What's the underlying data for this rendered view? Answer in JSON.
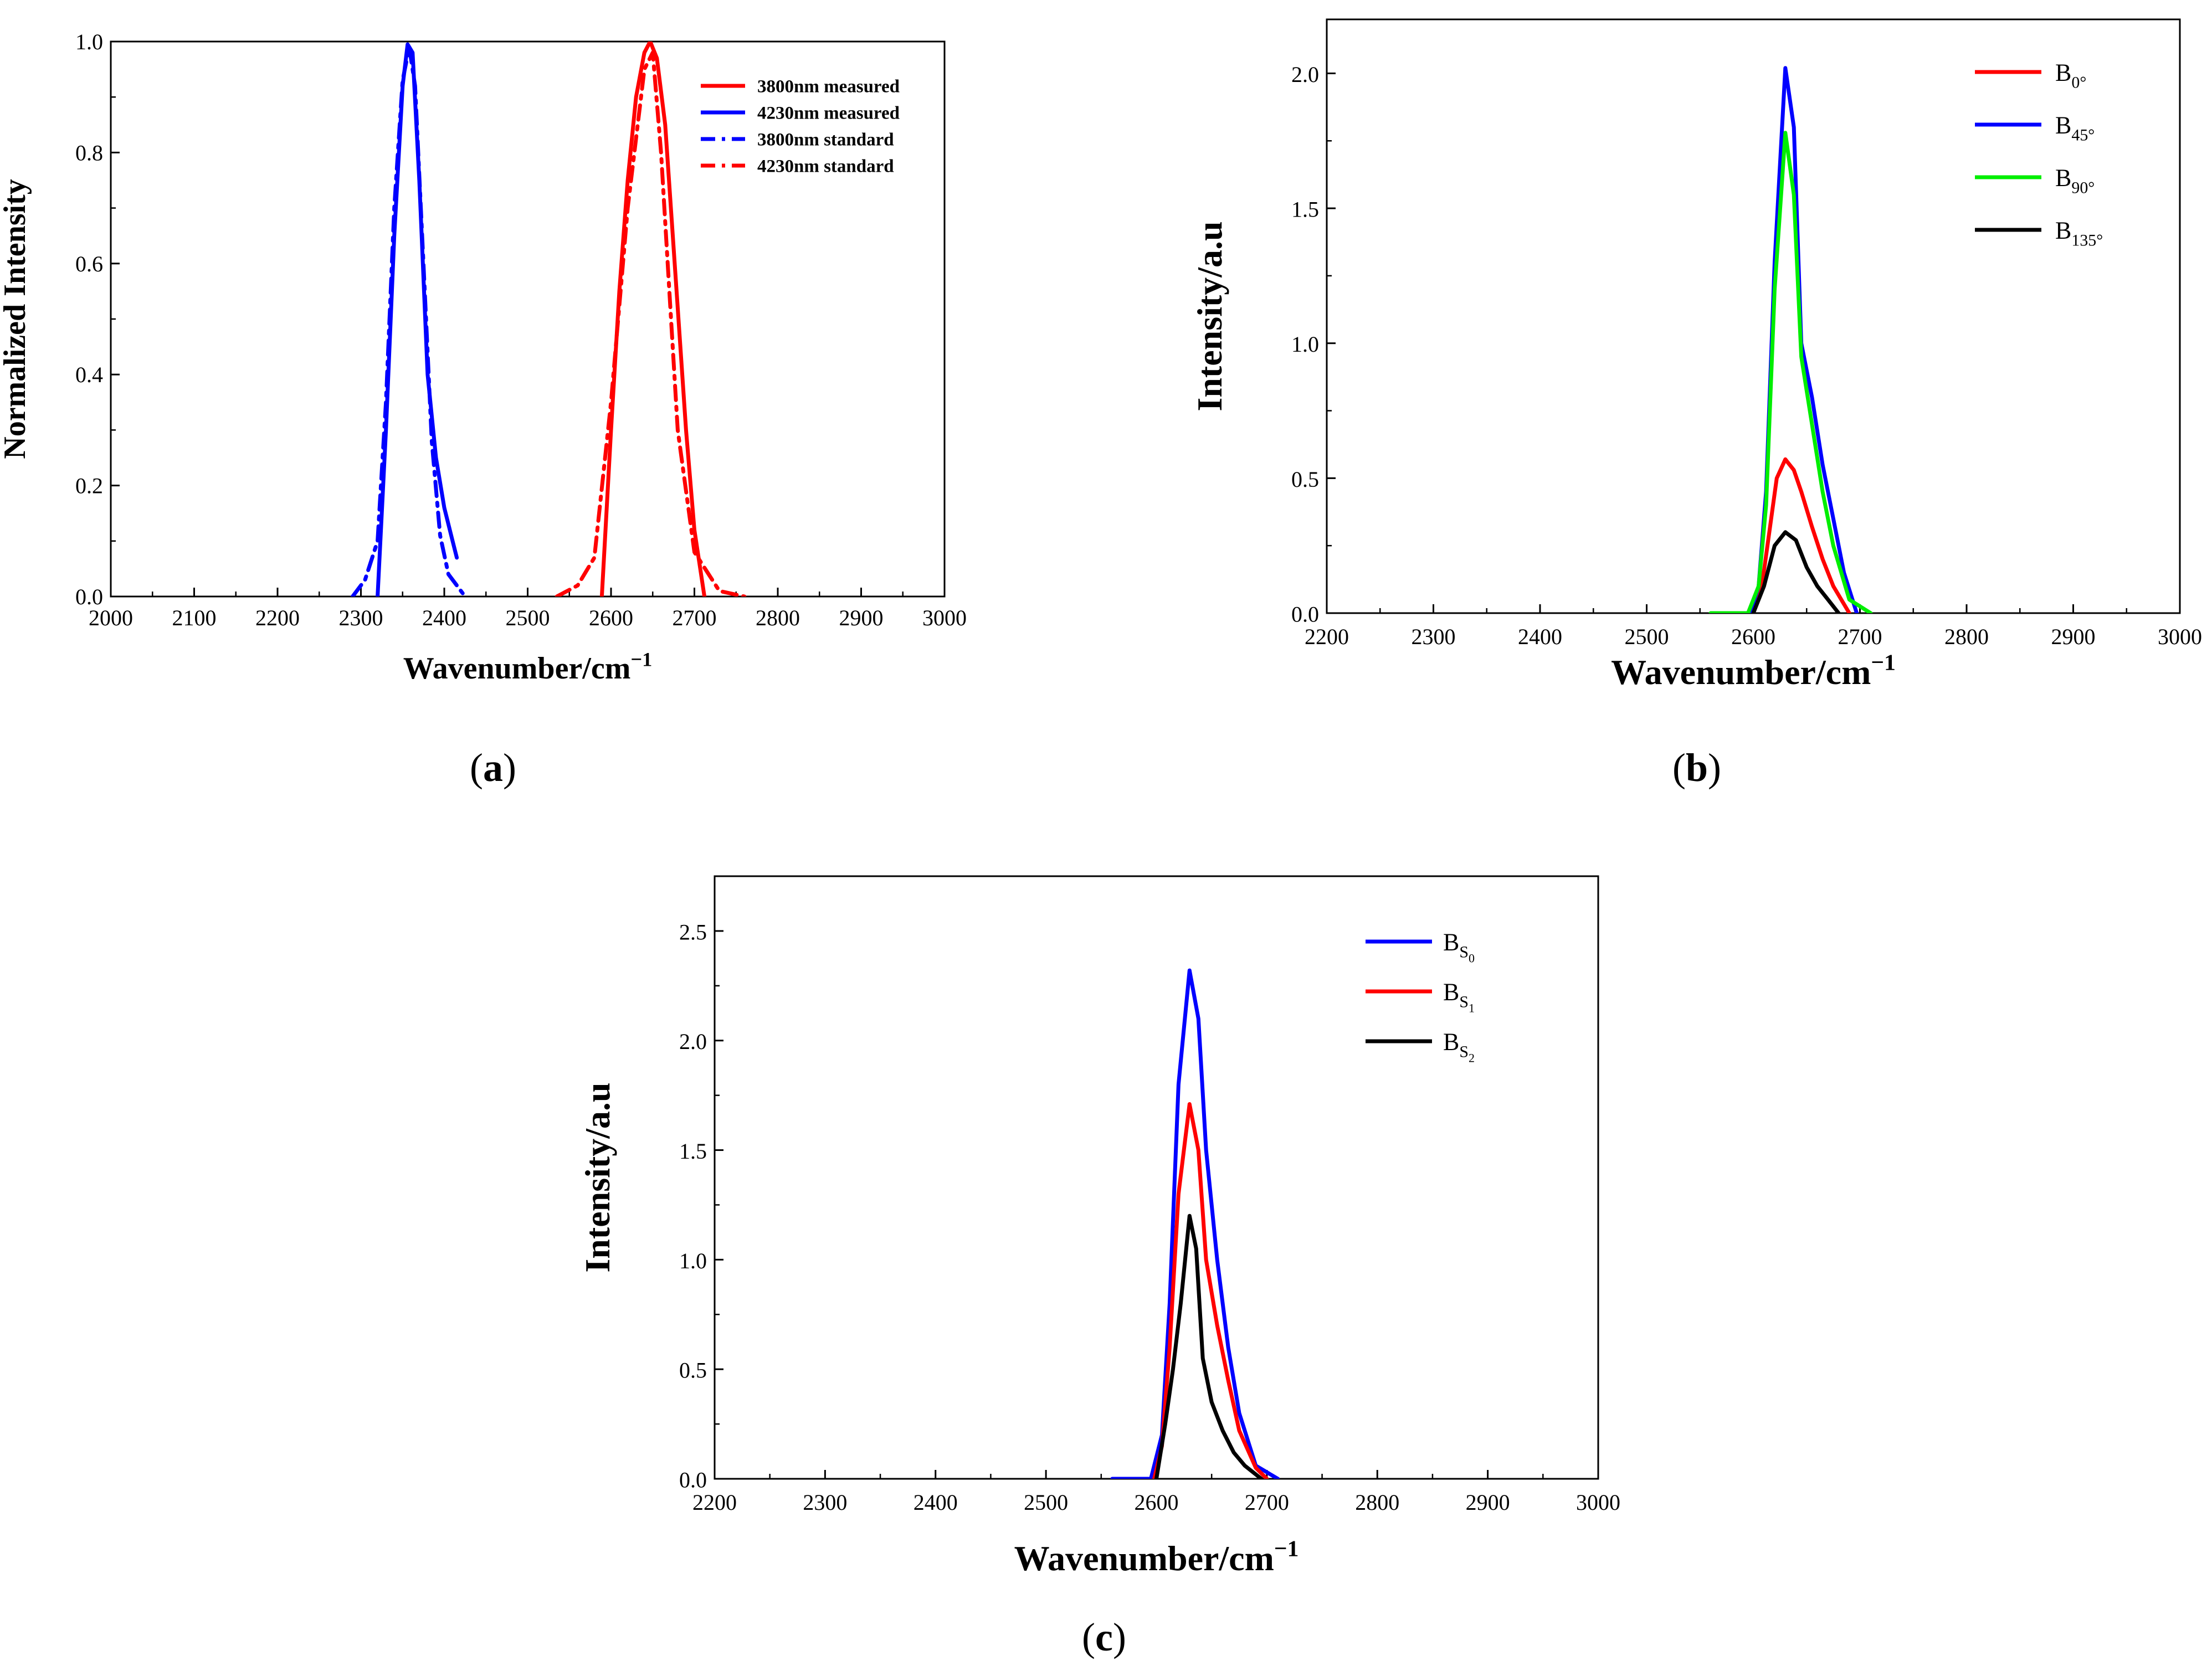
{
  "chart_data": [
    {
      "type": "line",
      "panel_label": "(a)",
      "xlabel": "Wavenumber/cm",
      "xlabel_sup": "−1",
      "ylabel": "Normalized Intensity",
      "xlim": [
        2000,
        3000
      ],
      "ylim": [
        0,
        1.0
      ],
      "x_ticks": [
        "2000",
        "2100",
        "2200",
        "2300",
        "2400",
        "2500",
        "2600",
        "2700",
        "2800",
        "2900",
        "3000"
      ],
      "y_ticks": [
        "0.0",
        "0.2",
        "0.4",
        "0.6",
        "0.8",
        "1.0"
      ],
      "legend_position": "top-right",
      "series": [
        {
          "name": "3800nm measured",
          "color": "#ff0000",
          "dash": "solid",
          "x": [
            2589,
            2600,
            2610,
            2620,
            2630,
            2640,
            2647,
            2655,
            2665,
            2680,
            2690,
            2700,
            2712
          ],
          "y": [
            0,
            0.3,
            0.55,
            0.75,
            0.9,
            0.98,
            1.0,
            0.97,
            0.85,
            0.52,
            0.3,
            0.12,
            0
          ]
        },
        {
          "name": "4230nm measured",
          "color": "#0000ff",
          "dash": "solid",
          "x": [
            2320,
            2330,
            2340,
            2350,
            2356,
            2362,
            2370,
            2380,
            2390,
            2400,
            2410,
            2415
          ],
          "y": [
            0,
            0.3,
            0.65,
            0.92,
            0.995,
            0.98,
            0.75,
            0.4,
            0.25,
            0.16,
            0.1,
            0.07
          ]
        },
        {
          "name": "3800nm standard",
          "color": "#0000ff",
          "dash": "dashdot",
          "x": [
            2290,
            2305,
            2320,
            2330,
            2340,
            2350,
            2358,
            2365,
            2375,
            2385,
            2395,
            2405,
            2415,
            2425
          ],
          "y": [
            0,
            0.03,
            0.1,
            0.35,
            0.7,
            0.93,
            0.99,
            0.92,
            0.6,
            0.28,
            0.11,
            0.04,
            0.02,
            0
          ]
        },
        {
          "name": "4230nm standard",
          "color": "#ff0000",
          "dash": "dashdot",
          "x": [
            2535,
            2560,
            2580,
            2600,
            2620,
            2640,
            2650,
            2660,
            2670,
            2680,
            2700,
            2730,
            2760
          ],
          "y": [
            0,
            0.02,
            0.07,
            0.35,
            0.7,
            0.95,
            0.98,
            0.8,
            0.55,
            0.3,
            0.08,
            0.01,
            0
          ]
        }
      ]
    },
    {
      "type": "line",
      "panel_label": "(b)",
      "xlabel": "Wavenumber/cm",
      "xlabel_sup": "−1",
      "ylabel": "Intensity/a.u",
      "xlim": [
        2200,
        3000
      ],
      "ylim": [
        0,
        2.2
      ],
      "x_ticks": [
        "2200",
        "2300",
        "2400",
        "2500",
        "2600",
        "2700",
        "2800",
        "2900",
        "3000"
      ],
      "y_ticks": [
        "0.0",
        "0.5",
        "1.0",
        "1.5",
        "2.0"
      ],
      "legend_position": "top-right",
      "series": [
        {
          "name": "B",
          "sub": "0°",
          "color": "#ff0000",
          "dash": "solid",
          "x": [
            2600,
            2608,
            2615,
            2622,
            2630,
            2638,
            2645,
            2655,
            2665,
            2675,
            2690
          ],
          "y": [
            0,
            0.1,
            0.3,
            0.5,
            0.57,
            0.53,
            0.45,
            0.32,
            0.2,
            0.1,
            0
          ]
        },
        {
          "name": "B",
          "sub": "45°",
          "color": "#0000ff",
          "dash": "solid",
          "x": [
            2597,
            2605,
            2612,
            2620,
            2630,
            2638,
            2645,
            2655,
            2665,
            2675,
            2685,
            2697
          ],
          "y": [
            0,
            0.1,
            0.45,
            1.3,
            2.02,
            1.8,
            1.0,
            0.8,
            0.55,
            0.35,
            0.15,
            0
          ]
        },
        {
          "name": "B",
          "sub": "90°",
          "color": "#00ee00",
          "dash": "solid",
          "x": [
            2560,
            2595,
            2605,
            2612,
            2620,
            2630,
            2638,
            2645,
            2655,
            2665,
            2675,
            2690,
            2710
          ],
          "y": [
            0,
            0,
            0.1,
            0.4,
            1.2,
            1.78,
            1.55,
            0.95,
            0.7,
            0.45,
            0.25,
            0.05,
            0
          ]
        },
        {
          "name": "B",
          "sub": "135°",
          "color": "#000000",
          "dash": "solid",
          "x": [
            2600,
            2610,
            2620,
            2630,
            2640,
            2650,
            2660,
            2670,
            2680
          ],
          "y": [
            0,
            0.1,
            0.25,
            0.3,
            0.27,
            0.17,
            0.1,
            0.05,
            0
          ]
        }
      ]
    },
    {
      "type": "line",
      "panel_label": "(c)",
      "xlabel": "Wavenumber/cm",
      "xlabel_sup": "−1",
      "ylabel": "Intensity/a.u",
      "xlim": [
        2200,
        3000
      ],
      "ylim": [
        0,
        2.75
      ],
      "x_ticks": [
        "2200",
        "2300",
        "2400",
        "2500",
        "2600",
        "2700",
        "2800",
        "2900",
        "3000"
      ],
      "y_ticks": [
        "0.0",
        "0.5",
        "1.0",
        "1.5",
        "2.0",
        "2.5"
      ],
      "legend_position": "top-right",
      "series": [
        {
          "name": "B",
          "sub": "S",
          "subsub": "0",
          "color": "#0000ff",
          "dash": "solid",
          "x": [
            2560,
            2595,
            2605,
            2612,
            2620,
            2630,
            2638,
            2645,
            2655,
            2665,
            2675,
            2690,
            2710
          ],
          "y": [
            0,
            0,
            0.2,
            0.8,
            1.8,
            2.32,
            2.1,
            1.5,
            1.0,
            0.6,
            0.3,
            0.06,
            0
          ]
        },
        {
          "name": "B",
          "sub": "S",
          "subsub": "1",
          "color": "#ff0000",
          "dash": "solid",
          "x": [
            2598,
            2605,
            2612,
            2620,
            2630,
            2638,
            2645,
            2655,
            2665,
            2675,
            2690,
            2700
          ],
          "y": [
            0,
            0.15,
            0.6,
            1.3,
            1.71,
            1.5,
            1.0,
            0.7,
            0.45,
            0.22,
            0.05,
            0
          ]
        },
        {
          "name": "B",
          "sub": "S",
          "subsub": "2",
          "color": "#000000",
          "dash": "solid",
          "x": [
            2600,
            2608,
            2615,
            2622,
            2630,
            2636,
            2642,
            2650,
            2660,
            2670,
            2680,
            2695
          ],
          "y": [
            0,
            0.25,
            0.5,
            0.8,
            1.2,
            1.05,
            0.55,
            0.35,
            0.22,
            0.12,
            0.06,
            0
          ]
        }
      ]
    }
  ]
}
